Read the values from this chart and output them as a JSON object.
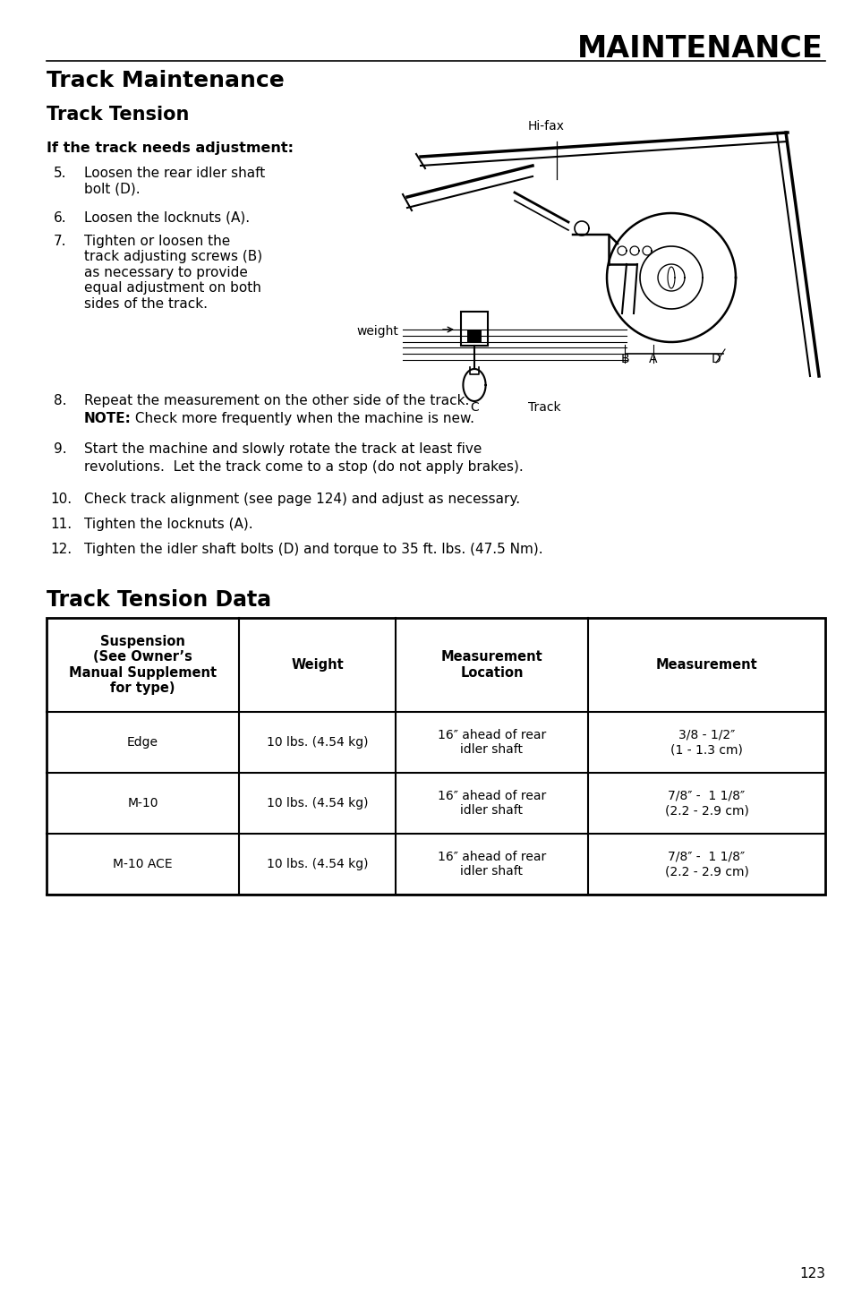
{
  "page_title": "MAINTENANCE",
  "section_title": "Track Maintenance",
  "subsection_title": "Track Tension",
  "bg_color": "#ffffff",
  "adjustment_header": "If the track needs adjustment:",
  "step5": "Loosen the rear idler shaft\nbolt (D).",
  "step6": "Loosen the locknuts (A).",
  "step7": "Tighten or loosen the\ntrack adjusting screws (B)\nas necessary to provide\nequal adjustment on both\nsides of the track.",
  "step8a": "Repeat the measurement on the other side of the track.",
  "step8b_bold": "NOTE:",
  "step8b_rest": " Check more frequently when the machine is new.",
  "step9a": "Start the machine and slowly rotate the track at least five",
  "step9b": "revolutions.  Let the track come to a stop (do not apply brakes).",
  "step10": "Check track alignment (see page 124) and adjust as necessary.",
  "step11": "Tighten the locknuts (A).",
  "step12": "Tighten the idler shaft bolts (D) and torque to 35 ft. lbs. (47.5 Nm).",
  "table_section_title": "Track Tension Data",
  "table_headers": [
    "Suspension\n(See Owner’s\nManual Supplement\nfor type)",
    "Weight",
    "Measurement\nLocation",
    "Measurement"
  ],
  "table_rows": [
    [
      "Edge",
      "10 lbs. (4.54 kg)",
      "16″ ahead of rear\nidler shaft",
      "3/8 - 1/2″\n(1 - 1.3 cm)"
    ],
    [
      "M-10",
      "10 lbs. (4.54 kg)",
      "16″ ahead of rear\nidler shaft",
      "7/8″ -  1 1/8″\n(2.2 - 2.9 cm)"
    ],
    [
      "M-10 ACE",
      "10 lbs. (4.54 kg)",
      "16″ ahead of rear\nidler shaft",
      "7/8″ -  1 1/8″\n(2.2 - 2.9 cm)"
    ]
  ],
  "page_number": "123",
  "hifax_label": "Hi-fax",
  "weight_label": "weight",
  "B_label": "B",
  "A_label": "A",
  "D_label": "D",
  "C_label": "C",
  "Track_label": "Track"
}
